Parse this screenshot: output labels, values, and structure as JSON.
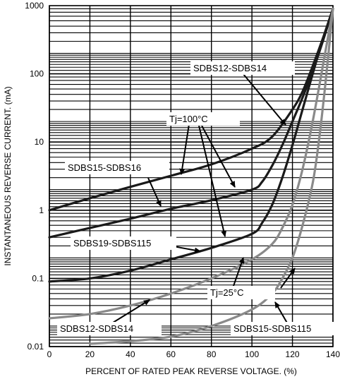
{
  "chart_data": {
    "type": "line",
    "y_scale": "log",
    "xlabel": "PERCENT OF RATED PEAK REVERSE VOLTAGE. (%)",
    "ylabel": "INSTANTANEOUS REVERSE CURRENT. (mA)",
    "xlim": [
      0,
      140
    ],
    "ylim": [
      0.01,
      1000
    ],
    "x_ticks": [
      0,
      20,
      40,
      60,
      80,
      100,
      120,
      140
    ],
    "x_tick_labels": [
      "0",
      "20",
      "40",
      "60",
      "80",
      "100",
      "120",
      "140"
    ],
    "y_ticks": [
      0.01,
      0.1,
      1,
      10,
      100,
      1000
    ],
    "y_tick_labels": [
      "0.01",
      "0.1",
      "1",
      "10",
      "100",
      "1000"
    ],
    "grid": true,
    "colors": {
      "tj100": "#1a1a1a",
      "tj25": "#8a8a8a",
      "grid": "#000000"
    },
    "series": [
      {
        "name": "SDBS12-SDBS14",
        "group": "Tj=100°C",
        "x": [
          0,
          20,
          40,
          60,
          80,
          100,
          110,
          120,
          125,
          130,
          135,
          140
        ],
        "y": [
          1,
          1.5,
          2.2,
          3.2,
          4.7,
          8,
          12,
          30,
          55,
          130,
          330,
          900
        ]
      },
      {
        "name": "SDBS15-SDBS16",
        "group": "Tj=100°C",
        "x": [
          0,
          20,
          40,
          60,
          80,
          100,
          105,
          110,
          115,
          120,
          125,
          130,
          135,
          140
        ],
        "y": [
          0.4,
          0.55,
          0.75,
          1.05,
          1.4,
          2,
          2.6,
          4.5,
          9,
          20,
          45,
          110,
          300,
          900
        ]
      },
      {
        "name": "SDBS19-SDBS115",
        "group": "Tj=100°C",
        "x": [
          0,
          20,
          40,
          60,
          80,
          100,
          105,
          110,
          115,
          120,
          125,
          130,
          135,
          140
        ],
        "y": [
          0.09,
          0.1,
          0.13,
          0.19,
          0.28,
          0.45,
          0.65,
          1.2,
          3,
          9,
          30,
          100,
          320,
          900
        ]
      },
      {
        "name": "SDBS12-SDBS14",
        "group": "Tj=25°C",
        "x": [
          0,
          20,
          40,
          60,
          80,
          100,
          110,
          115,
          120,
          125,
          130,
          135,
          140
        ],
        "y": [
          0.026,
          0.03,
          0.04,
          0.06,
          0.1,
          0.19,
          0.32,
          0.55,
          1.2,
          4,
          20,
          130,
          900
        ]
      },
      {
        "name": "SDBS15-SDBS115",
        "group": "Tj=25°C",
        "x": [
          20,
          40,
          60,
          80,
          100,
          110,
          115,
          120,
          125,
          130,
          133,
          136,
          140
        ],
        "y": [
          0.011,
          0.012,
          0.014,
          0.02,
          0.035,
          0.06,
          0.1,
          0.2,
          0.6,
          2.5,
          10,
          60,
          900
        ]
      }
    ],
    "annotations": [
      {
        "id": "label_1214_hot",
        "text": "SDBS12-SDBS14"
      },
      {
        "id": "label_tj100",
        "text": "Tj=100°C"
      },
      {
        "id": "label_1516",
        "text": "SDBS15-SDBS16"
      },
      {
        "id": "label_19115",
        "text": "SDBS19-SDBS115"
      },
      {
        "id": "label_tj25",
        "text": "Tj=25°C"
      },
      {
        "id": "label_1214_cold",
        "text": "SDBS12-SDBS14"
      },
      {
        "id": "label_15115_cold",
        "text": "SDBS15-SDBS115"
      }
    ]
  }
}
